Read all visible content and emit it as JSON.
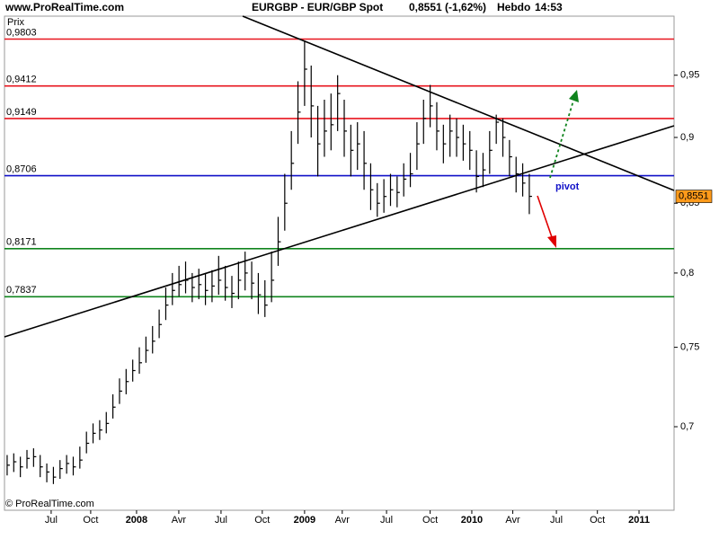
{
  "chart_data": {
    "type": "hlc",
    "site": "www.ProRealTime.com",
    "title": "EURGBP - EUR/GBP Spot",
    "price_info": "0,8551 (-1,62%)",
    "period": "Hebdo",
    "time": "14:53",
    "y_label": "Prix",
    "copyright": "© ProRealTime.com",
    "annotation": "pivot",
    "log_scale": true,
    "color": "#000000",
    "categories": [
      null,
      null,
      null,
      null,
      null,
      null,
      null,
      null,
      null,
      null,
      null,
      null,
      null,
      null,
      null,
      null,
      null,
      null,
      null,
      null,
      null,
      null,
      null,
      null,
      null,
      null,
      null,
      null,
      null,
      null,
      null,
      null,
      null,
      null,
      null,
      null,
      null,
      null,
      null,
      null,
      null,
      null,
      null,
      null,
      null,
      null,
      null,
      null,
      null,
      null,
      null,
      null,
      null,
      null,
      null,
      null,
      null,
      null,
      null,
      null,
      null,
      null,
      null,
      null,
      null,
      null,
      null,
      null,
      null,
      null,
      null,
      null,
      null,
      null,
      null,
      null,
      null,
      null,
      null,
      null
    ],
    "high": [
      0.683,
      0.684,
      0.682,
      0.686,
      0.687,
      0.683,
      0.678,
      0.676,
      0.68,
      0.683,
      0.682,
      0.688,
      0.697,
      0.702,
      0.704,
      0.709,
      0.72,
      0.73,
      0.736,
      0.742,
      0.75,
      0.757,
      0.764,
      0.775,
      0.79,
      0.8,
      0.805,
      0.808,
      0.8,
      0.803,
      0.8,
      0.802,
      0.812,
      0.805,
      0.798,
      0.808,
      0.815,
      0.808,
      0.8,
      0.795,
      0.815,
      0.84,
      0.872,
      0.905,
      0.945,
      0.978,
      0.958,
      0.925,
      0.93,
      0.935,
      0.95,
      0.93,
      0.91,
      0.912,
      0.905,
      0.88,
      0.865,
      0.868,
      0.872,
      0.87,
      0.88,
      0.888,
      0.912,
      0.93,
      0.942,
      0.928,
      0.91,
      0.918,
      0.915,
      0.91,
      0.905,
      0.89,
      0.888,
      0.905,
      0.918,
      0.915,
      0.898,
      0.885,
      0.88,
      0.872
    ],
    "low": [
      0.671,
      0.673,
      0.67,
      0.675,
      0.676,
      0.67,
      0.667,
      0.666,
      0.669,
      0.672,
      0.671,
      0.675,
      0.684,
      0.69,
      0.692,
      0.696,
      0.705,
      0.714,
      0.72,
      0.728,
      0.733,
      0.74,
      0.746,
      0.756,
      0.768,
      0.778,
      0.784,
      0.786,
      0.78,
      0.782,
      0.778,
      0.78,
      0.785,
      0.781,
      0.776,
      0.782,
      0.788,
      0.782,
      0.772,
      0.77,
      0.78,
      0.805,
      0.83,
      0.86,
      0.895,
      0.925,
      0.9,
      0.87,
      0.885,
      0.89,
      0.905,
      0.885,
      0.87,
      0.875,
      0.86,
      0.845,
      0.84,
      0.843,
      0.848,
      0.847,
      0.855,
      0.862,
      0.875,
      0.895,
      0.908,
      0.89,
      0.88,
      0.885,
      0.885,
      0.882,
      0.875,
      0.858,
      0.862,
      0.872,
      0.895,
      0.885,
      0.87,
      0.858,
      0.855,
      0.842
    ],
    "close": [
      0.677,
      0.679,
      0.676,
      0.681,
      0.682,
      0.676,
      0.673,
      0.67,
      0.675,
      0.678,
      0.676,
      0.68,
      0.69,
      0.696,
      0.698,
      0.702,
      0.712,
      0.722,
      0.728,
      0.735,
      0.74,
      0.748,
      0.754,
      0.765,
      0.778,
      0.788,
      0.792,
      0.795,
      0.79,
      0.792,
      0.788,
      0.791,
      0.795,
      0.79,
      0.786,
      0.795,
      0.8,
      0.793,
      0.785,
      0.778,
      0.795,
      0.822,
      0.85,
      0.88,
      0.92,
      0.955,
      0.925,
      0.895,
      0.905,
      0.91,
      0.935,
      0.905,
      0.89,
      0.895,
      0.88,
      0.86,
      0.85,
      0.855,
      0.86,
      0.858,
      0.868,
      0.872,
      0.895,
      0.915,
      0.925,
      0.905,
      0.895,
      0.905,
      0.9,
      0.895,
      0.89,
      0.87,
      0.875,
      0.89,
      0.912,
      0.9,
      0.885,
      0.872,
      0.865,
      0.8551
    ],
    "ylim": [
      0.651,
      1.0
    ],
    "yticks": [
      {
        "value": 0.7,
        "label": "0,7"
      },
      {
        "value": 0.75,
        "label": "0,75"
      },
      {
        "value": 0.8,
        "label": "0,8"
      },
      {
        "value": 0.85,
        "label": "0,85"
      },
      {
        "value": 0.9,
        "label": "0,9"
      },
      {
        "value": 0.95,
        "label": "0,95"
      }
    ],
    "xlim": [
      -0.4,
      100.9
    ],
    "xticks": [
      {
        "value": 6.66,
        "label": "Jul"
      },
      {
        "value": 12.64,
        "label": "Oct"
      },
      {
        "value": 19.58,
        "label": "2008"
      },
      {
        "value": 25.97,
        "label": "Avr"
      },
      {
        "value": 32.36,
        "label": "Jul"
      },
      {
        "value": 38.6,
        "label": "Oct"
      },
      {
        "value": 45.0,
        "label": "2009"
      },
      {
        "value": 50.7,
        "label": "Avr"
      },
      {
        "value": 57.4,
        "label": "Jul"
      },
      {
        "value": 64.0,
        "label": "Oct"
      },
      {
        "value": 70.3,
        "label": "2010"
      },
      {
        "value": 76.5,
        "label": "Avr"
      },
      {
        "value": 83.1,
        "label": "Jul"
      },
      {
        "value": 89.3,
        "label": "Oct"
      },
      {
        "value": 95.6,
        "label": "2011"
      }
    ],
    "levels": [
      {
        "value": 0.9803,
        "label": "0,9803",
        "color": "#e8141e"
      },
      {
        "value": 0.9412,
        "label": "0,9412",
        "color": "#e8141e"
      },
      {
        "value": 0.9149,
        "label": "0,9149",
        "color": "#e8141e"
      },
      {
        "value": 0.8706,
        "label": "0,8706",
        "color": "#1010c8"
      },
      {
        "value": 0.8171,
        "label": "0,8171",
        "color": "#10841e"
      },
      {
        "value": 0.7837,
        "label": "0,7837",
        "color": "#10841e"
      }
    ],
    "last_price": {
      "value": 0.8551,
      "label": "0,8551",
      "color": "#ff9a1a"
    }
  }
}
